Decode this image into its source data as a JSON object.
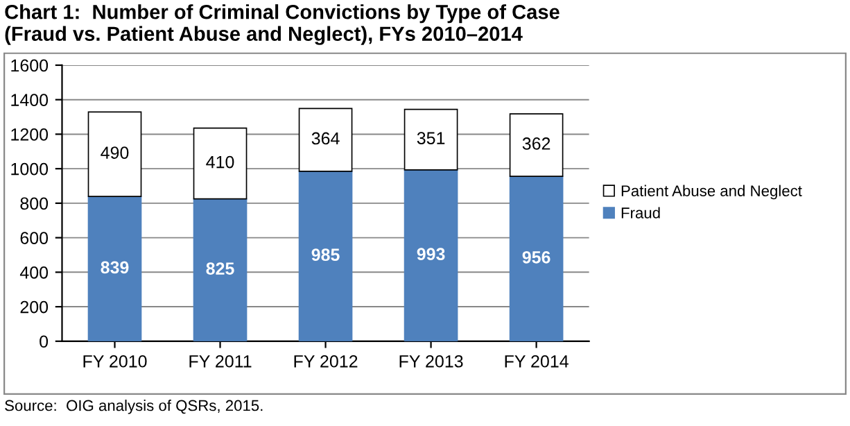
{
  "chart_data": {
    "type": "bar",
    "title": "Chart 1:  Number of Criminal Convictions by Type of Case\n(Fraud vs. Patient Abuse and Neglect), FYs 2010–2014",
    "categories": [
      "FY 2010",
      "FY 2011",
      "FY 2012",
      "FY 2013",
      "FY 2014"
    ],
    "series": [
      {
        "name": "Fraud",
        "color": "#4f81bd",
        "values": [
          839,
          825,
          985,
          993,
          956
        ]
      },
      {
        "name": "Patient Abuse and Neglect",
        "color": "#ffffff",
        "values": [
          490,
          410,
          364,
          351,
          362
        ]
      }
    ],
    "stacked": true,
    "data_labels": true,
    "ylim": [
      0,
      1600
    ],
    "yticks": [
      0,
      200,
      400,
      600,
      800,
      1000,
      1200,
      1400,
      1600
    ],
    "grid": "y",
    "legend": "right",
    "annotations": [
      "Source:  OIG analysis of QSRs, 2015."
    ]
  }
}
